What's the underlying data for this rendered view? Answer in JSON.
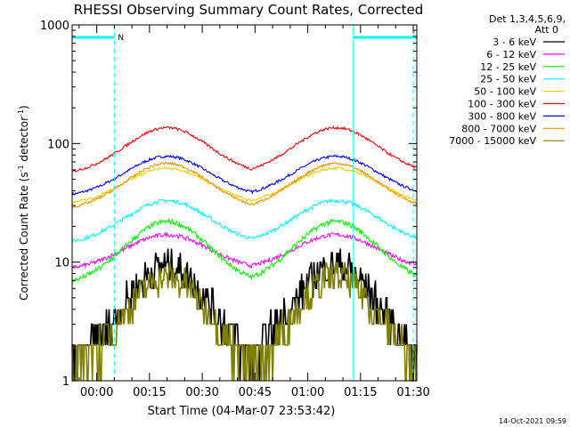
{
  "chart_data": {
    "type": "line",
    "title": "RHESSI Observing Summary Count Rates, Corrected",
    "xlabel": "Start Time (04-Mar-07 23:53:42)",
    "ylabel": "Corrected Count Rate (s",
    "ylabel_sup1": "-1",
    "ylabel_mid": " detector",
    "ylabel_sup2": "-1",
    "ylabel_end": ")",
    "yscale": "log",
    "ylim": [
      1,
      1000
    ],
    "y_ticks": [
      {
        "value": 1,
        "label": "1"
      },
      {
        "value": 10,
        "label": "10"
      },
      {
        "value": 100,
        "label": "100"
      },
      {
        "value": 1000,
        "label": "1000"
      }
    ],
    "xlim_minutes": [
      -7,
      91
    ],
    "x_ticks": [
      {
        "minute": 0,
        "label": "00:00"
      },
      {
        "minute": 15,
        "label": "00:15"
      },
      {
        "minute": 30,
        "label": "00:30"
      },
      {
        "minute": 45,
        "label": "00:45"
      },
      {
        "minute": 60,
        "label": "01:00"
      },
      {
        "minute": 75,
        "label": "01:15"
      },
      {
        "minute": 90,
        "label": "01:30"
      }
    ],
    "legend_header_1": "Det 1,3,4,5,6,9,",
    "legend_header_2": "Att 0",
    "series": [
      {
        "name": "3 - 6 keV",
        "color": "#000000",
        "min": 1.4,
        "max": 9.5,
        "quantized": true,
        "noise": 0.35
      },
      {
        "name": "6 - 12 keV",
        "color": "#ff00ff",
        "min": 8.5,
        "max": 17,
        "noise": 0.04
      },
      {
        "name": "12 - 25 keV",
        "color": "#00ff00",
        "min": 6.3,
        "max": 22,
        "noise": 0.05
      },
      {
        "name": "25 - 50 keV",
        "color": "#00ffff",
        "min": 14,
        "max": 33,
        "noise": 0.035
      },
      {
        "name": "50 - 100 keV",
        "color": "#e6d200",
        "min": 30,
        "max": 62,
        "noise": 0.025
      },
      {
        "name": "100 - 300 keV",
        "color": "#ff0000",
        "min": 54,
        "max": 136,
        "noise": 0.025
      },
      {
        "name": "300 - 800 keV",
        "color": "#0000ff",
        "min": 35,
        "max": 78,
        "noise": 0.025
      },
      {
        "name": "800 - 7000 keV",
        "color": "#ff8c00",
        "min": 27,
        "max": 68,
        "noise": 0.025
      },
      {
        "name": "7000 - 15000 keV",
        "color": "#808000",
        "min": 1.2,
        "max": 7.5,
        "quantized": true,
        "noise": 0.3
      }
    ],
    "orbit_peaks_minutes": [
      20,
      68
    ],
    "night_intervals_minutes": [
      [
        -7,
        5
      ],
      [
        73,
        91
      ]
    ],
    "saa_flag_label": "N",
    "timestamp": "14-Oct-2021 09:59"
  }
}
